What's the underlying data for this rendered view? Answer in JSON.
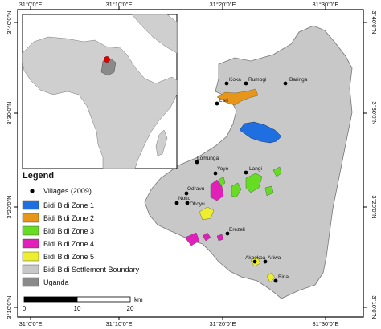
{
  "map": {
    "top_ticks": [
      "31°0'0\"E",
      "31°10'0\"E",
      "31°20'0\"E",
      "31°30'0\"E"
    ],
    "bottom_ticks": [
      "31°0'0\"E",
      "31°10'0\"E",
      "31°20'0\"E",
      "31°30'0\"E"
    ],
    "left_ticks": [
      "3°40'0\"N",
      "3°30'0\"N",
      "3°20'0\"N",
      "3°10'0\"N"
    ],
    "right_ticks": [
      "3°40'0\"N",
      "3°30'0\"N",
      "3°20'0\"N",
      "3°10'0\"N"
    ],
    "villages": [
      {
        "name": "Koka"
      },
      {
        "name": "Rumogi"
      },
      {
        "name": "Baringa"
      },
      {
        "name": "Lori"
      },
      {
        "name": "Lomunga"
      },
      {
        "name": "Yoyo"
      },
      {
        "name": "Langi"
      },
      {
        "name": "Odravu"
      },
      {
        "name": "Noko"
      },
      {
        "name": "Okoyu"
      },
      {
        "name": "Erezeli"
      },
      {
        "name": "Akpokoa"
      },
      {
        "name": "Ariwa"
      },
      {
        "name": "Biria"
      }
    ],
    "legend": {
      "title": "Legend",
      "items": [
        {
          "label": "Villages (2009)",
          "color": "#000000"
        },
        {
          "label": "Bidi Bidi Zone 1",
          "color": "#1f6fe0"
        },
        {
          "label": "Bidi Bidi Zone 2",
          "color": "#e8961a"
        },
        {
          "label": "Bidi Bidi Zone 3",
          "color": "#66dd22"
        },
        {
          "label": "Bidi Bidi Zone 4",
          "color": "#e020b8"
        },
        {
          "label": "Bidi Bidi Zone 5",
          "color": "#eeee30"
        },
        {
          "label": "Bidi Bidi Settlement Boundary",
          "color": "#c8c8c8"
        },
        {
          "label": "Uganda",
          "color": "#8a8a8a"
        }
      ]
    },
    "scale_bar": {
      "labels": [
        "0",
        "10",
        "20"
      ],
      "unit": "km"
    }
  }
}
